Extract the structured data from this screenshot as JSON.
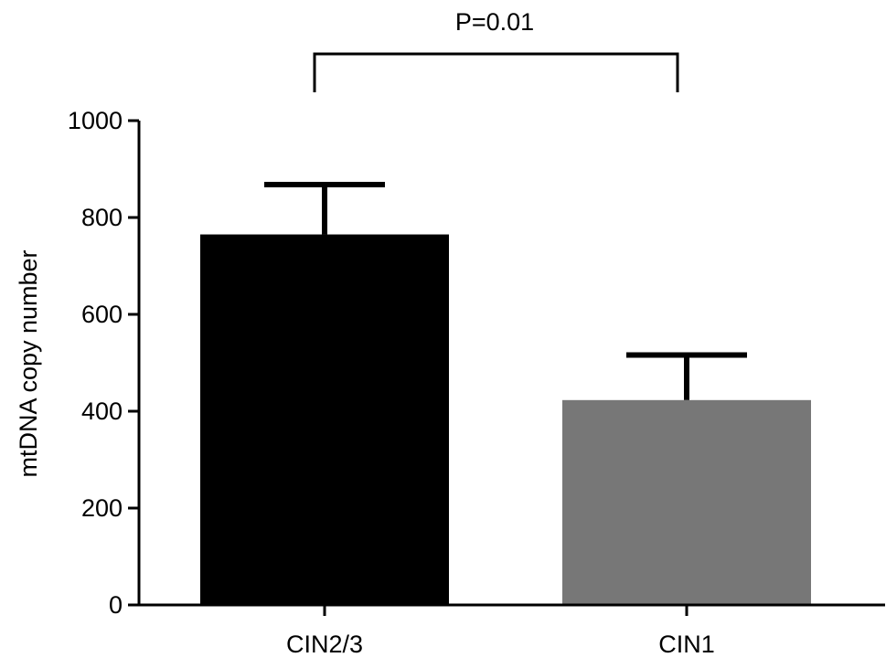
{
  "chart_data": {
    "type": "bar",
    "categories": [
      "CIN2/3",
      "CIN1"
    ],
    "values": [
      765,
      423
    ],
    "error_upper": [
      868,
      516
    ],
    "colors": [
      "#000000",
      "#777777"
    ],
    "xlabel": "",
    "ylabel": "mtDNA copy number",
    "ylim": [
      0,
      1000
    ],
    "yticks": [
      "0",
      "200",
      "400",
      "600",
      "800",
      "1000"
    ],
    "annotation": "P=0.01",
    "grid": false,
    "legend": "none"
  }
}
